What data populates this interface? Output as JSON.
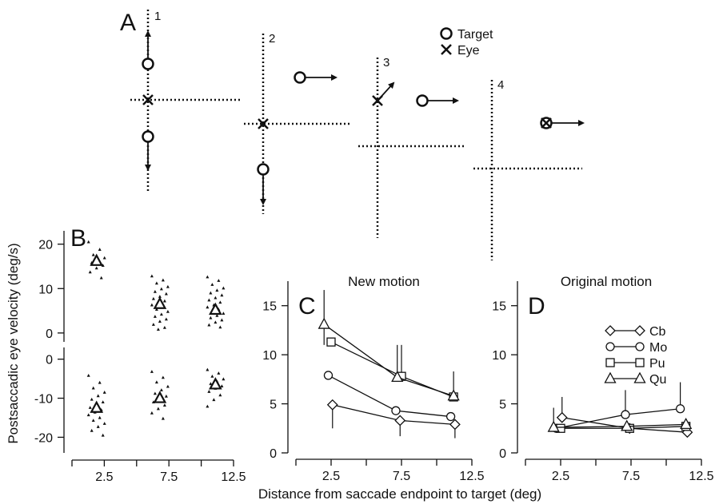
{
  "panel_a": {
    "letter": "A",
    "track_labels": [
      "1",
      "2",
      "3",
      "4"
    ],
    "legend": [
      {
        "symbol": "circle",
        "label": "Target"
      },
      {
        "symbol": "cross",
        "label": "Eye"
      }
    ]
  },
  "shared": {
    "xlabel": "Distance from saccade endpoint to target (deg)"
  },
  "chart_data": [
    {
      "panel": "B",
      "type": "scatter",
      "title": "",
      "ylabel": "Postsaccadic eye velocity (deg/s)",
      "xlim": [
        0,
        12.5
      ],
      "x_ticks": [
        "2.5",
        "7.5",
        "12.5"
      ],
      "upper_axis": {
        "ylim": [
          -2,
          23
        ],
        "y_ticks": [
          "0",
          "10",
          "20"
        ]
      },
      "lower_axis": {
        "ylim": [
          -24,
          3
        ],
        "y_ticks": [
          "0",
          "-10",
          "-20"
        ]
      },
      "series": [
        {
          "group": "upper",
          "x": [
            1.9,
            6.8,
            11.1
          ],
          "mean": [
            16.2,
            6.5,
            5.2
          ],
          "spread": [
            {
              "x": 1.9,
              "y": [
                20.5,
                18.8,
                17.6,
                16.9,
                16.4,
                15.8,
                15.2,
                14.6,
                13.7,
                12.4
              ]
            },
            {
              "x": 6.8,
              "y": [
                12.8,
                11.9,
                11.2,
                10.4,
                9.9,
                9.3,
                8.8,
                8.2,
                7.7,
                7.2,
                6.8,
                6.3,
                5.8,
                5.3,
                4.8,
                4.2,
                3.7,
                3.1,
                2.6,
                1.9,
                1.2,
                0.8
              ]
            },
            {
              "x": 11.1,
              "y": [
                12.6,
                11.8,
                10.9,
                10.1,
                9.6,
                9.0,
                8.5,
                7.9,
                7.4,
                6.9,
                6.3,
                5.8,
                5.3,
                4.9,
                4.4,
                3.9,
                3.4,
                2.9,
                2.4,
                1.8,
                1.3
              ]
            }
          ]
        },
        {
          "group": "lower",
          "x": [
            1.9,
            6.8,
            11.1
          ],
          "mean": [
            -12.5,
            -10.0,
            -6.5
          ],
          "spread": [
            {
              "x": 1.9,
              "y": [
                -4.2,
                -6.0,
                -7.4,
                -8.5,
                -9.4,
                -10.3,
                -11.0,
                -11.8,
                -12.4,
                -13.0,
                -13.6,
                -14.3,
                -15.0,
                -15.7,
                -16.5,
                -17.3,
                -18.3,
                -19.5
              ]
            },
            {
              "x": 6.8,
              "y": [
                -3.2,
                -4.7,
                -5.9,
                -7.0,
                -7.9,
                -8.8,
                -9.5,
                -10.3,
                -11.0,
                -11.8,
                -12.7,
                -13.8,
                -15.2
              ]
            },
            {
              "x": 11.1,
              "y": [
                -2.7,
                -3.6,
                -4.4,
                -5.1,
                -5.7,
                -6.3,
                -6.9,
                -7.5,
                -8.3,
                -9.2,
                -10.4,
                -12.1
              ]
            }
          ]
        }
      ]
    },
    {
      "panel": "C",
      "type": "line",
      "title": "New motion",
      "xlim": [
        0,
        12.5
      ],
      "ylim": [
        0,
        17.5
      ],
      "x_ticks": [
        "2.5",
        "7.5",
        "12.5"
      ],
      "y_ticks": [
        "0",
        "5",
        "10",
        "15"
      ],
      "series": [
        {
          "name": "Cb",
          "marker": "diamond",
          "x": [
            2.6,
            7.4,
            11.3
          ],
          "values": [
            4.9,
            3.3,
            2.9
          ],
          "err_low": [
            2.4,
            1.6,
            1.4
          ],
          "err_high": [
            0,
            0,
            0
          ]
        },
        {
          "name": "Mo",
          "marker": "circle",
          "x": [
            2.3,
            7.1,
            11.0
          ],
          "values": [
            7.9,
            4.3,
            3.7
          ],
          "err_low": [
            0,
            0,
            0
          ],
          "err_high": [
            0,
            0,
            0
          ]
        },
        {
          "name": "Pu",
          "marker": "square",
          "x": [
            2.5,
            7.5,
            11.2
          ],
          "values": [
            11.3,
            7.8,
            5.7
          ],
          "err_low": [
            0,
            0,
            0
          ],
          "err_high": [
            0,
            3.2,
            2.6
          ]
        },
        {
          "name": "Qu",
          "marker": "triangle",
          "x": [
            2.0,
            7.2,
            11.2
          ],
          "values": [
            13.1,
            7.7,
            5.8
          ],
          "err_low": [
            2.1,
            0,
            0
          ],
          "err_high": [
            3.5,
            3.3,
            0
          ]
        }
      ]
    },
    {
      "panel": "D",
      "type": "line",
      "title": "Original motion",
      "xlim": [
        0,
        12.5
      ],
      "ylim": [
        0,
        17.5
      ],
      "x_ticks": [
        "2.5",
        "7.5",
        "12.5"
      ],
      "y_ticks": [
        "0",
        "5",
        "10",
        "15"
      ],
      "legend_position": "top-right",
      "series": [
        {
          "name": "Cb",
          "marker": "diamond",
          "x": [
            2.6,
            7.4,
            11.5
          ],
          "values": [
            3.6,
            2.5,
            2.1
          ],
          "err_low": [
            0,
            0,
            0
          ],
          "err_high": [
            2.1,
            0,
            0
          ]
        },
        {
          "name": "Mo",
          "marker": "circle",
          "x": [
            2.2,
            7.1,
            11.0
          ],
          "values": [
            2.5,
            3.9,
            4.5
          ],
          "err_low": [
            0,
            0,
            0
          ],
          "err_high": [
            0,
            2.5,
            2.7
          ]
        },
        {
          "name": "Pu",
          "marker": "square",
          "x": [
            2.5,
            7.4,
            11.4
          ],
          "values": [
            2.5,
            2.5,
            2.7
          ],
          "err_low": [
            0,
            0,
            0
          ],
          "err_high": [
            0,
            0,
            0
          ]
        },
        {
          "name": "Qu",
          "marker": "triangle",
          "x": [
            2.0,
            7.2,
            11.4
          ],
          "values": [
            2.6,
            2.7,
            2.9
          ],
          "err_low": [
            0,
            0,
            0
          ],
          "err_high": [
            2.0,
            0,
            0
          ]
        }
      ]
    }
  ]
}
